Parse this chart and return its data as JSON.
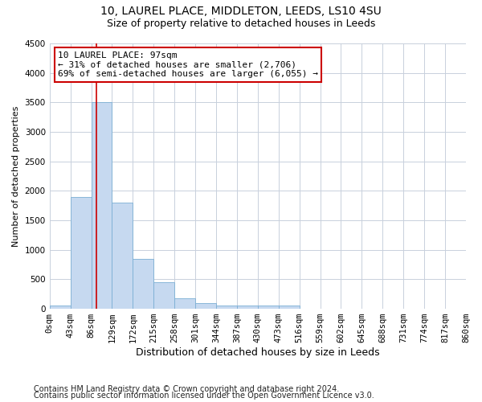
{
  "title_line1": "10, LAUREL PLACE, MIDDLETON, LEEDS, LS10 4SU",
  "title_line2": "Size of property relative to detached houses in Leeds",
  "xlabel": "Distribution of detached houses by size in Leeds",
  "ylabel": "Number of detached properties",
  "bin_labels": [
    "0sqm",
    "43sqm",
    "86sqm",
    "129sqm",
    "172sqm",
    "215sqm",
    "258sqm",
    "301sqm",
    "344sqm",
    "387sqm",
    "430sqm",
    "473sqm",
    "516sqm",
    "559sqm",
    "602sqm",
    "645sqm",
    "688sqm",
    "731sqm",
    "774sqm",
    "817sqm",
    "860sqm"
  ],
  "bin_edges": [
    0,
    43,
    86,
    129,
    172,
    215,
    258,
    301,
    344,
    387,
    430,
    473,
    516,
    559,
    602,
    645,
    688,
    731,
    774,
    817,
    860
  ],
  "bar_values": [
    50,
    1900,
    3500,
    1800,
    850,
    450,
    175,
    100,
    60,
    55,
    50,
    50,
    5,
    3,
    2,
    2,
    1,
    1,
    1,
    1
  ],
  "bar_color": "#c6d9f0",
  "bar_edgecolor": "#7bafd4",
  "property_size": 97,
  "annotation_line1": "10 LAUREL PLACE: 97sqm",
  "annotation_line2": "← 31% of detached houses are smaller (2,706)",
  "annotation_line3": "69% of semi-detached houses are larger (6,055) →",
  "vline_color": "#cc0000",
  "annotation_box_edgecolor": "#cc0000",
  "ylim": [
    0,
    4500
  ],
  "yticks": [
    0,
    500,
    1000,
    1500,
    2000,
    2500,
    3000,
    3500,
    4000,
    4500
  ],
  "footnote1": "Contains HM Land Registry data © Crown copyright and database right 2024.",
  "footnote2": "Contains public sector information licensed under the Open Government Licence v3.0.",
  "bg_color": "#ffffff",
  "grid_color": "#c8d0dc",
  "title1_fontsize": 10,
  "title2_fontsize": 9,
  "ylabel_fontsize": 8,
  "xlabel_fontsize": 9,
  "tick_fontsize": 7.5,
  "annotation_fontsize": 8,
  "footnote_fontsize": 7
}
